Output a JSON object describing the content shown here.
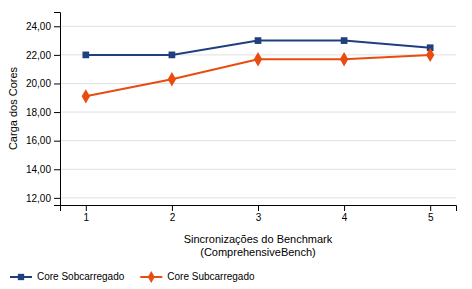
{
  "chart_data": {
    "type": "line",
    "x": [
      1,
      2,
      3,
      4,
      5
    ],
    "series": [
      {
        "name": "Core Sobcarregado",
        "color": "#1F3F7F",
        "marker": "square",
        "values": [
          22.0,
          22.0,
          23.0,
          23.0,
          22.5
        ]
      },
      {
        "name": "Core Subcarregado",
        "color": "#E84C0E",
        "marker": "diamond",
        "values": [
          19.1,
          20.3,
          21.7,
          21.7,
          22.0
        ]
      }
    ],
    "xlabel": [
      "Sincronizações do Benchmark",
      "(ComprehensiveBench)"
    ],
    "ylabel": "Carga dos Cores",
    "xlim": [
      0.7,
      5.3
    ],
    "xticks": [
      1,
      2,
      3,
      4,
      5
    ],
    "ylim": [
      11.5,
      25.0
    ],
    "yticks": [
      {
        "value": 12.0,
        "label": "12,00"
      },
      {
        "value": 14.0,
        "label": "14,00"
      },
      {
        "value": 16.0,
        "label": "16,00"
      },
      {
        "value": 18.0,
        "label": "18,00"
      },
      {
        "value": 20.0,
        "label": "20,00"
      },
      {
        "value": 22.0,
        "label": "22,00"
      },
      {
        "value": 24.0,
        "label": "24,00"
      }
    ],
    "grid": true,
    "legend": "bottom"
  }
}
